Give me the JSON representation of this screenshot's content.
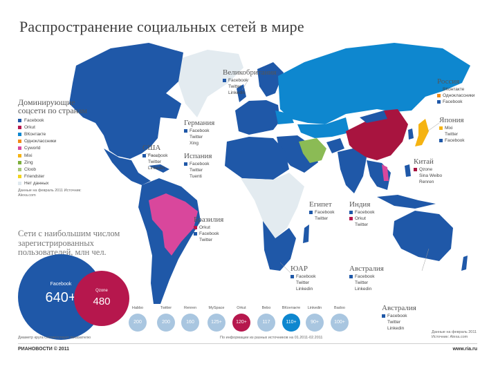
{
  "title": "Распространение социальных сетей в мире",
  "colors": {
    "facebook": "#1f58a8",
    "orkut": "#b6174d",
    "vkontakte": "#0e87cf",
    "odnoklassniki": "#f28c17",
    "cyworld": "#d9479c",
    "mixi": "#f5b312",
    "zing": "#7cae3b",
    "qzone": "#a7c77a",
    "friendster": "#f3d31c",
    "nodata": "#dfe8ee",
    "qzone_china": "#a8143f",
    "iran": "#8bbb55",
    "ocean": "#ffffff",
    "nodata_land": "#e3ebf0"
  },
  "legend": {
    "heading": "Доминирующие соцсети по странам",
    "items": [
      {
        "label": "Facebook",
        "color": "#1f58a8"
      },
      {
        "label": "Orkut",
        "color": "#b6174d"
      },
      {
        "label": "ВКонтакте",
        "color": "#0e87cf"
      },
      {
        "label": "Одноклассники",
        "color": "#f28c17"
      },
      {
        "label": "Cyworld",
        "color": "#d9479c"
      },
      {
        "label": "Mixi",
        "color": "#f5b312"
      },
      {
        "label": "Zing",
        "color": "#7cae3b"
      },
      {
        "label": "Cloob",
        "color": "#a7c77a"
      },
      {
        "label": "Friendster",
        "color": "#f3d31c"
      },
      {
        "label": "Нет данных",
        "color": "#dfe8ee"
      }
    ],
    "note": "Данные на февраль 2011 Источник: Alexa.com"
  },
  "countries": [
    {
      "name": "Великобритания",
      "items": [
        {
          "t": "Facebook",
          "c": "#1f58a8"
        },
        {
          "t": "Twitter",
          "c": ""
        },
        {
          "t": "Linkedin",
          "c": ""
        }
      ]
    },
    {
      "name": "Россия",
      "items": [
        {
          "t": "ВКонтакте",
          "c": "#0e87cf"
        },
        {
          "t": "Одноклассники",
          "c": "#f28c17"
        },
        {
          "t": "Facebook",
          "c": "#1f58a8"
        }
      ]
    },
    {
      "name": "Германия",
      "items": [
        {
          "t": "Facebook",
          "c": "#1f58a8"
        },
        {
          "t": "Twitter",
          "c": ""
        },
        {
          "t": "Xing",
          "c": ""
        }
      ]
    },
    {
      "name": "Испания",
      "items": [
        {
          "t": "Facebook",
          "c": "#1f58a8"
        },
        {
          "t": "Twitter",
          "c": ""
        },
        {
          "t": "Tuenti",
          "c": ""
        }
      ]
    },
    {
      "name": "США",
      "items": [
        {
          "t": "Facebook",
          "c": "#1f58a8"
        },
        {
          "t": "Twitter",
          "c": ""
        },
        {
          "t": "Linkedin",
          "c": ""
        }
      ]
    },
    {
      "name": "Япония",
      "items": [
        {
          "t": "Mixi",
          "c": "#f5b312"
        },
        {
          "t": "Twitter",
          "c": ""
        },
        {
          "t": "Facebook",
          "c": "#1f58a8"
        }
      ]
    },
    {
      "name": "Китай",
      "items": [
        {
          "t": "Qzone",
          "c": "#a8143f"
        },
        {
          "t": "Sina Weibo",
          "c": ""
        },
        {
          "t": "Renren",
          "c": ""
        }
      ]
    },
    {
      "name": "Египет",
      "items": [
        {
          "t": "Facebook",
          "c": "#1f58a8"
        },
        {
          "t": "Twitter",
          "c": ""
        }
      ]
    },
    {
      "name": "Индия",
      "items": [
        {
          "t": "Facebook",
          "c": "#1f58a8"
        },
        {
          "t": "Orkut",
          "c": "#b6174d"
        },
        {
          "t": "Twitter",
          "c": ""
        }
      ]
    },
    {
      "name": "Бразилия",
      "items": [
        {
          "t": "Orkut",
          "c": "#b6174d"
        },
        {
          "t": "Facebook",
          "c": "#1f58a8"
        },
        {
          "t": "Twitter",
          "c": ""
        }
      ]
    },
    {
      "name": "ЮАР",
      "items": [
        {
          "t": "Facebook",
          "c": "#1f58a8"
        },
        {
          "t": "Twitter",
          "c": ""
        },
        {
          "t": "Linkedin",
          "c": ""
        }
      ]
    },
    {
      "name": "Австралия",
      "items": [
        {
          "t": "Facebook",
          "c": "#1f58a8"
        },
        {
          "t": "Twitter",
          "c": ""
        },
        {
          "t": "Linkedin",
          "c": ""
        }
      ]
    }
  ],
  "users": {
    "heading": "Сети с наибольшим числом зарегистрированных пользователей, млн чел.",
    "big": [
      {
        "name": "Facebook",
        "value": "640+",
        "color": "#1f58a8"
      },
      {
        "name": "Qzone",
        "value": "480",
        "color": "#b6174d"
      }
    ],
    "small": [
      {
        "name": "Habbo",
        "value": "200",
        "color": "#a9c6e0"
      },
      {
        "name": "Twitter",
        "value": "200",
        "color": "#a9c6e0"
      },
      {
        "name": "Renren",
        "value": "160",
        "color": "#a9c6e0"
      },
      {
        "name": "MySpace",
        "value": "125+",
        "color": "#a9c6e0"
      },
      {
        "name": "Orkut",
        "value": "120+",
        "color": "#b6174d"
      },
      {
        "name": "Bebo",
        "value": "117",
        "color": "#a9c6e0"
      },
      {
        "name": "ВКонтакте",
        "value": "110+",
        "color": "#0e87cf"
      },
      {
        "name": "Linkedin",
        "value": "90+",
        "color": "#a9c6e0"
      },
      {
        "name": "Badoo",
        "value": "100+",
        "color": "#a9c6e0"
      }
    ],
    "note_left": "Диаметр круга соответствует показателю",
    "note_right": "По информации из разных источников на 01.2011-02.2011"
  },
  "brand": "РИАНОВОСТИ © 2011",
  "site": "www.ria.ru"
}
